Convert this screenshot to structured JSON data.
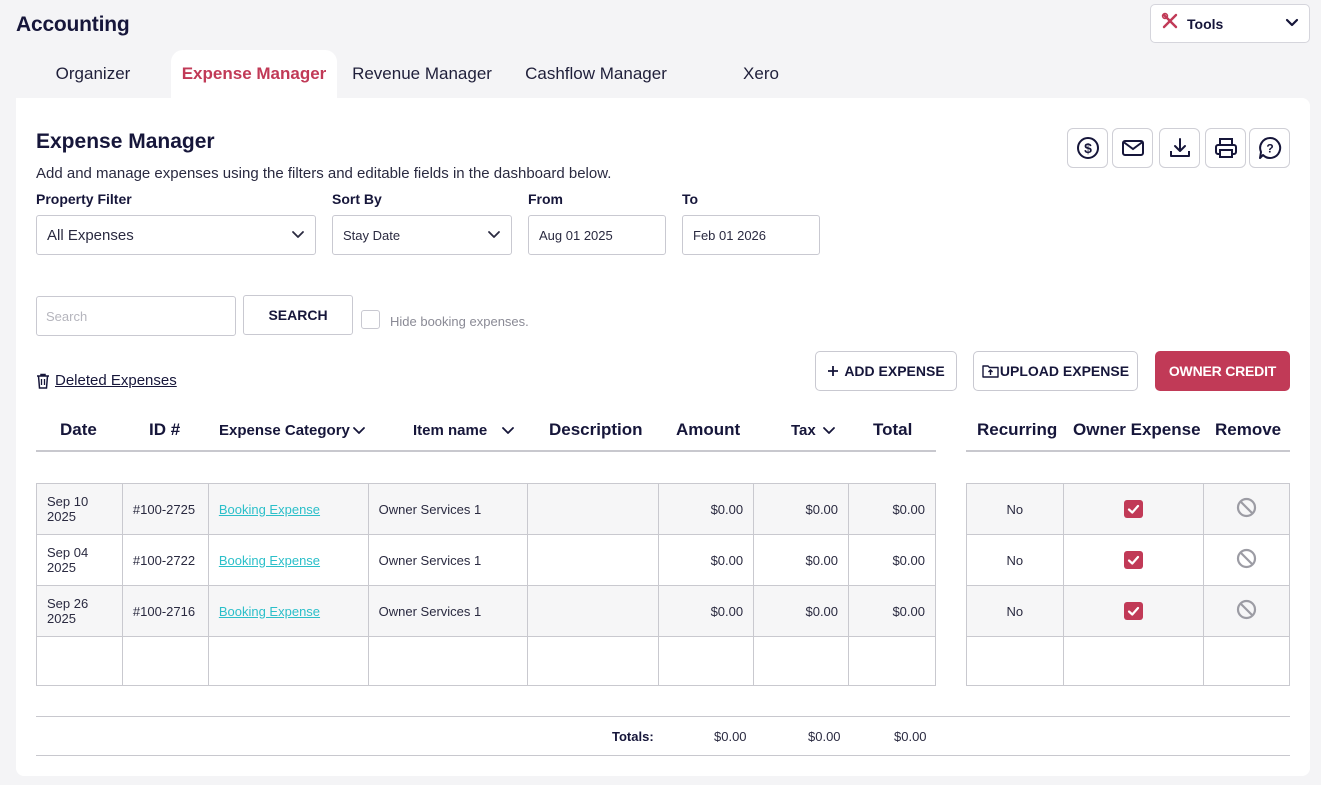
{
  "app": {
    "title": "Accounting"
  },
  "tools": {
    "label": "Tools",
    "icon": "tools-icon"
  },
  "tabs": [
    {
      "label": "Organizer",
      "active": false
    },
    {
      "label": "Expense Manager",
      "active": true
    },
    {
      "label": "Revenue Manager",
      "active": false
    },
    {
      "label": "Cashflow Manager",
      "active": false
    },
    {
      "label": "Xero",
      "active": false
    }
  ],
  "page": {
    "title": "Expense Manager",
    "subtitle": "Add and manage expenses using the filters and editable fields in the dashboard below."
  },
  "action_icons": [
    "dollar-circle-icon",
    "mail-icon",
    "download-icon",
    "print-icon",
    "help-chat-icon"
  ],
  "filters": {
    "property_label": "Property Filter",
    "property_value": "All Expenses",
    "sort_label": "Sort By",
    "sort_value": "Stay Date",
    "from_label": "From",
    "from_value": "Aug 01 2025",
    "to_label": "To",
    "to_value": "Feb 01 2026"
  },
  "search": {
    "placeholder": "Search",
    "button": "SEARCH",
    "hide_label": "Hide booking expenses."
  },
  "deleted_link": "Deleted Expenses",
  "buttons": {
    "add": "ADD EXPENSE",
    "upload": "UPLOAD EXPENSE",
    "owner_credit": "OWNER CREDIT"
  },
  "columns": {
    "date": "Date",
    "id": "ID #",
    "category": "Expense Category",
    "item": "Item name",
    "description": "Description",
    "amount": "Amount",
    "tax": "Tax",
    "total": "Total",
    "recurring": "Recurring",
    "owner_expense": "Owner Expense",
    "remove": "Remove"
  },
  "rows": [
    {
      "date": "Sep 10 2025",
      "id": "#100-2725",
      "category": "Booking Expense",
      "item": "Owner Services 1",
      "description": "",
      "amount": "$0.00",
      "tax": "$0.00",
      "total": "$0.00",
      "recurring": "No",
      "owner_expense": true
    },
    {
      "date": "Sep 04 2025",
      "id": "#100-2722",
      "category": "Booking Expense",
      "item": "Owner Services 1",
      "description": "",
      "amount": "$0.00",
      "tax": "$0.00",
      "total": "$0.00",
      "recurring": "No",
      "owner_expense": true
    },
    {
      "date": "Sep 26 2025",
      "id": "#100-2716",
      "category": "Booking Expense",
      "item": "Owner Services 1",
      "description": "",
      "amount": "$0.00",
      "tax": "$0.00",
      "total": "$0.00",
      "recurring": "No",
      "owner_expense": true
    }
  ],
  "totals": {
    "label": "Totals:",
    "amount": "$0.00",
    "tax": "$0.00",
    "total": "$0.00"
  },
  "colors": {
    "accent": "#c13a57",
    "link": "#2bbfc9",
    "text": "#16163a"
  }
}
